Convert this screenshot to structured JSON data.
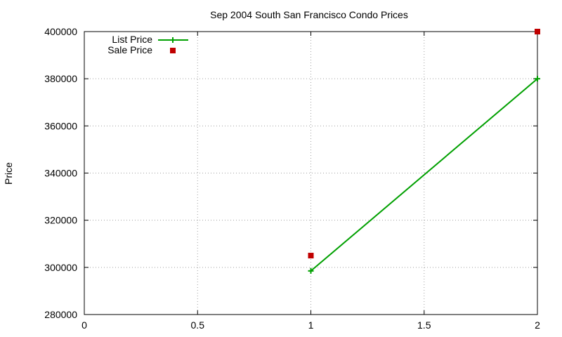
{
  "chart_data": {
    "type": "line",
    "title": "Sep 2004 South San Francisco Condo Prices",
    "ylabel": "Price",
    "xlim": [
      0,
      2
    ],
    "ylim": [
      280000,
      400000
    ],
    "xticks": [
      0,
      0.5,
      1,
      1.5,
      2
    ],
    "xtick_labels": [
      "0",
      "0.5",
      "1",
      "1.5",
      "2"
    ],
    "yticks": [
      280000,
      300000,
      320000,
      340000,
      360000,
      380000,
      400000
    ],
    "ytick_labels": [
      "280000",
      "300000",
      "320000",
      "340000",
      "360000",
      "380000",
      "400000"
    ],
    "grid": true,
    "legend_position": "top-left",
    "series": [
      {
        "name": "List Price",
        "style": "linespoints",
        "marker": "plus",
        "color": "#00a000",
        "x": [
          1,
          2
        ],
        "y": [
          298500,
          380000
        ]
      },
      {
        "name": "Sale Price",
        "style": "points",
        "marker": "square",
        "color": "#c00000",
        "x": [
          1,
          2
        ],
        "y": [
          305000,
          400000
        ]
      }
    ]
  }
}
